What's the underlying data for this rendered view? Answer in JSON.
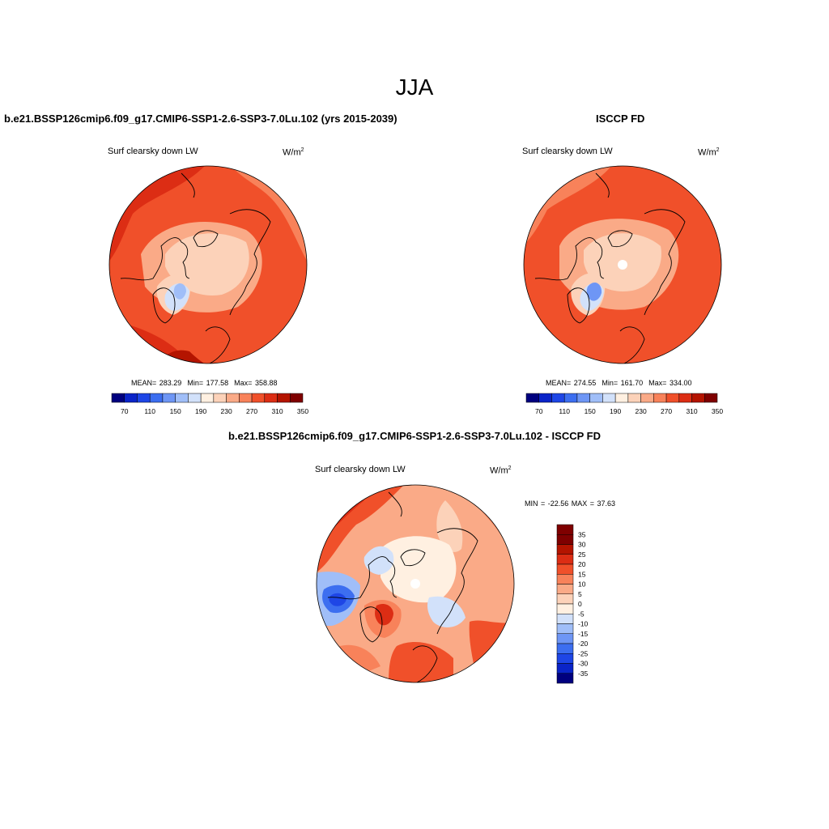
{
  "title": "JJA",
  "panels": [
    {
      "title": "b.e21.BSSP126cmip6.f09_g17.CMIP6-SSP1-2.6-SSP3-7.0Lu.102 (yrs 2015-2039)",
      "variable": "Surf clearsky down LW",
      "units_base": "W/m",
      "units_exp": "2",
      "stats": {
        "mean_label": "MEAN=",
        "mean": "283.29",
        "min_label": "Min=",
        "min": "177.58",
        "max_label": "Max=",
        "max": "358.88"
      },
      "colorbar_ticks": [
        "70",
        "110",
        "150",
        "190",
        "230",
        "270",
        "310",
        "350"
      ]
    },
    {
      "title": "ISCCP FD",
      "variable": "Surf clearsky down LW",
      "units_base": "W/m",
      "units_exp": "2",
      "stats": {
        "mean_label": "MEAN=",
        "mean": "274.55",
        "min_label": "Min=",
        "min": "161.70",
        "max_label": "Max=",
        "max": "334.00"
      },
      "colorbar_ticks": [
        "70",
        "110",
        "150",
        "190",
        "230",
        "270",
        "310",
        "350"
      ]
    },
    {
      "title": "b.e21.BSSP126cmip6.f09_g17.CMIP6-SSP1-2.6-SSP3-7.0Lu.102 - ISCCP FD",
      "variable": "Surf clearsky down LW",
      "units_base": "W/m",
      "units_exp": "2",
      "stats_text": "MIN = -22.56 MAX =  37.63",
      "colorbar_ticks": [
        "35",
        "30",
        "25",
        "20",
        "15",
        "10",
        "5",
        "0",
        "-5",
        "-10",
        "-15",
        "-20",
        "-25",
        "-30",
        "-35"
      ]
    }
  ],
  "colors": {
    "abs_scale": [
      "#00007f",
      "#0a24c8",
      "#1e46e6",
      "#3c6ef0",
      "#6e96f5",
      "#a0bef8",
      "#d2e1fa",
      "#fff0e1",
      "#fcd2b9",
      "#faaa87",
      "#f8825a",
      "#f0502a",
      "#dc2d14",
      "#b41400",
      "#7f0000"
    ],
    "diff_scale": [
      "#7f0000",
      "#b41400",
      "#dc2d14",
      "#f0502a",
      "#f8825a",
      "#faaa87",
      "#fcd2b9",
      "#fff0e1",
      "#d2e1fa",
      "#a0bef8",
      "#6e96f5",
      "#3c6ef0",
      "#1e46e6",
      "#0a24c8",
      "#00007f"
    ],
    "missing": "#ffffff",
    "coast": "#000000"
  }
}
